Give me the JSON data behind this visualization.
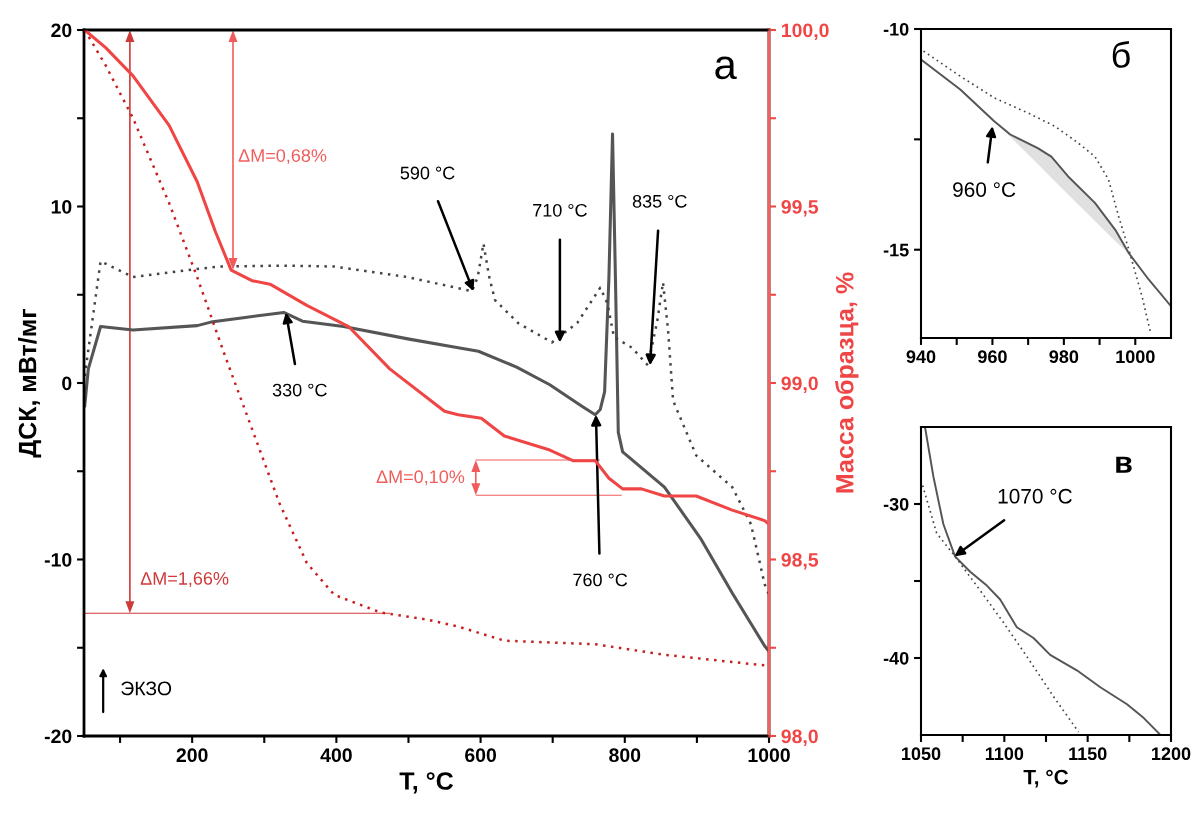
{
  "chart_data": [
    {
      "type": "line",
      "xlabel": "T, °C",
      "ylabel": "ДСК, мВт/мг",
      "y2label": "Масса образца, %",
      "xlim": [
        50,
        1000
      ],
      "xticks": [
        {
          "value": 100,
          "label": null
        },
        200,
        {
          "value": 300,
          "label": null
        },
        400,
        {
          "value": 500,
          "label": null
        },
        600,
        {
          "value": 700,
          "label": null
        },
        800,
        {
          "value": 900,
          "label": null
        },
        1000
      ],
      "ylim": [
        -20,
        20
      ],
      "yticks": [
        -20,
        {
          "value": -15,
          "label": null
        },
        -10,
        {
          "value": -5,
          "label": null
        },
        0,
        {
          "value": 5,
          "label": null
        },
        10,
        {
          "value": 15,
          "label": null
        },
        20
      ],
      "y2lim": [
        98.0,
        100.0
      ],
      "y2ticks": [
        {
          "value": 98.0,
          "label": "98,0"
        },
        {
          "value": 98.25,
          "label": null
        },
        {
          "value": 98.5,
          "label": "98,5"
        },
        {
          "value": 98.75,
          "label": null
        },
        {
          "value": 99.0,
          "label": "99,0"
        },
        {
          "value": 99.25,
          "label": null
        },
        {
          "value": 99.5,
          "label": "99,5"
        },
        {
          "value": 99.75,
          "label": null
        },
        {
          "value": 100.0,
          "label": "100,0"
        }
      ],
      "grid": false,
      "legend": false,
      "series": [
        {
          "color": "#555555",
          "line_style": "solid",
          "x": [
            51,
            56,
            73,
            118,
            207,
            226,
            271,
            327,
            353,
            410,
            499,
            569,
            597,
            650,
            696,
            740,
            759,
            766,
            772,
            778,
            783,
            787,
            791,
            797,
            855,
            905,
            949,
            994,
            1000
          ],
          "values": [
            -1.3,
            0.8,
            3.2,
            3.0,
            3.25,
            3.45,
            3.7,
            4.0,
            3.5,
            3.2,
            2.5,
            2.0,
            1.8,
            0.9,
            -0.1,
            -1.3,
            -1.8,
            -1.5,
            -0.5,
            6.0,
            14.1,
            6.0,
            -2.8,
            -3.9,
            -5.9,
            -8.8,
            -11.9,
            -14.9,
            -15.2
          ]
        },
        {
          "color": "#444444",
          "line_style": "dotted",
          "x": [
            51,
            73,
            118,
            194,
            239,
            327,
            397,
            499,
            588,
            596,
            604,
            612,
            620,
            652,
            699,
            734,
            766,
            776,
            785,
            810,
            832,
            845,
            853,
            860,
            867,
            899,
            949,
            975,
            994,
            1000
          ],
          "values": [
            0.4,
            6.9,
            6.0,
            6.4,
            6.6,
            6.65,
            6.6,
            6.0,
            5.2,
            6.0,
            7.9,
            6.0,
            4.7,
            3.4,
            2.3,
            3.4,
            5.4,
            4.5,
            2.6,
            2.0,
            1.0,
            3.5,
            5.7,
            3.0,
            -1.0,
            -4.1,
            -5.9,
            -8.0,
            -11.4,
            -12.0
          ]
        },
        {
          "color": "#f04545",
          "line_style": "solid",
          "axis": "y2",
          "x": [
            51,
            80,
            118,
            168,
            207,
            232,
            254,
            283,
            308,
            359,
            417,
            474,
            550,
            569,
            601,
            633,
            696,
            728,
            759,
            778,
            797,
            823,
            855,
            899,
            949,
            994,
            1000
          ],
          "values": [
            100.0,
            99.95,
            99.87,
            99.73,
            99.57,
            99.43,
            99.32,
            99.29,
            99.28,
            99.22,
            99.16,
            99.04,
            98.92,
            98.91,
            98.9,
            98.85,
            98.81,
            98.78,
            98.78,
            98.73,
            98.7,
            98.7,
            98.68,
            98.68,
            98.64,
            98.61,
            98.6
          ]
        },
        {
          "color": "#c81e1e",
          "line_style": "dotted",
          "axis": "y2",
          "x": [
            51,
            80,
            118,
            168,
            207,
            245,
            283,
            321,
            359,
            397,
            461,
            525,
            569,
            633,
            759,
            855,
            994,
            1000
          ],
          "values": [
            100.0,
            99.9,
            99.75,
            99.51,
            99.3,
            99.08,
            98.87,
            98.66,
            98.49,
            98.4,
            98.35,
            98.33,
            98.31,
            98.27,
            98.26,
            98.23,
            98.2,
            98.2
          ]
        }
      ],
      "annotations": [
        "а",
        "ΔM=0,68%",
        "ΔM=1,66%",
        "ΔM=0,10%",
        {
          "text": "590 °C",
          "x": 590,
          "y": 5.2
        },
        {
          "text": "710 °C",
          "x": 710,
          "y": 2.3
        },
        {
          "text": "835 °C",
          "x": 835,
          "y": 1.0
        },
        {
          "text": "330 °C",
          "x": 330,
          "y": 4.0
        },
        {
          "text": "760 °C",
          "x": 760,
          "y": -1.8
        },
        "ЭКЗО"
      ]
    },
    {
      "type": "line",
      "xlim": [
        940,
        1010
      ],
      "xticks": [
        940,
        {
          "value": 950,
          "label": null
        },
        960,
        {
          "value": 970,
          "label": null
        },
        980,
        {
          "value": 990,
          "label": null
        },
        1000
      ],
      "ylim": [
        -17,
        -10
      ],
      "yticks": [
        -10,
        {
          "value": -12.5,
          "label": null
        },
        -15
      ],
      "grid": false,
      "legend": false,
      "series": [
        {
          "color": "#555555",
          "line_style": "solid",
          "x": [
            940,
            951,
            960.5,
            965,
            972.7,
            976.5,
            981.2,
            988.7,
            994.4,
            998.2,
            1003.8,
            1010
          ],
          "values": [
            -10.69,
            -11.37,
            -12.09,
            -12.39,
            -12.7,
            -12.89,
            -13.34,
            -13.94,
            -14.55,
            -15.08,
            -15.68,
            -16.28
          ],
          "lower": [
            null,
            null,
            -12.09,
            -12.44,
            -13.06,
            -13.37,
            -13.75,
            -14.35,
            -14.81,
            -15.08,
            null,
            null
          ],
          "upper": [
            null,
            null,
            -12.09,
            -12.39,
            -12.7,
            -12.89,
            -13.34,
            -13.94,
            -14.55,
            -15.08,
            null,
            null
          ]
        },
        {
          "color": "#444444",
          "line_style": "dotted",
          "x": [
            940.7,
            951,
            960.5,
            969.9,
            977.4,
            984,
            988.7,
            992.5,
            995.3,
            998.2,
            1001.9,
            1004.3
          ],
          "values": [
            -10.5,
            -11.07,
            -11.56,
            -11.9,
            -12.2,
            -12.58,
            -12.89,
            -13.41,
            -14.24,
            -15.0,
            -16.06,
            -16.89
          ]
        }
      ],
      "annotations": [
        "б",
        {
          "text": "960 °C",
          "x": 960,
          "y": -12.2
        }
      ]
    },
    {
      "type": "line",
      "xlabel": "T, °C",
      "xlim": [
        1050,
        1200
      ],
      "xticks": [
        1050,
        {
          "value": 1075,
          "label": null
        },
        1100,
        {
          "value": 1125,
          "label": null
        },
        1150,
        {
          "value": 1175,
          "label": null
        },
        1200
      ],
      "ylim": [
        -45,
        -25
      ],
      "yticks": [
        -30,
        {
          "value": -35,
          "label": null
        },
        -40
      ],
      "grid": false,
      "legend": false,
      "series": [
        {
          "color": "#555555",
          "line_style": "solid",
          "x": [
            1052.4,
            1057.4,
            1063.4,
            1070.4,
            1079.5,
            1089.5,
            1097.5,
            1107.5,
            1117.5,
            1127.5,
            1143.5,
            1157.6,
            1173.6,
            1183.7,
            1193.7
          ],
          "values": [
            -25.0,
            -28.2,
            -31.3,
            -33.4,
            -34.4,
            -35.3,
            -36.2,
            -38.0,
            -38.7,
            -39.8,
            -40.8,
            -41.9,
            -43.0,
            -43.9,
            -45.0
          ]
        },
        {
          "color": "#444444",
          "line_style": "dotted",
          "x": [
            1051,
            1059.4,
            1070.4,
            1085.4,
            1099.5,
            1113.5,
            1129.5,
            1144.5
          ],
          "values": [
            -28.8,
            -31.9,
            -33.4,
            -35.6,
            -37.7,
            -39.9,
            -42.5,
            -44.8
          ]
        }
      ],
      "annotations": [
        "в",
        {
          "text": "1070 °C",
          "x": 1070,
          "y": -33.4
        }
      ]
    }
  ]
}
